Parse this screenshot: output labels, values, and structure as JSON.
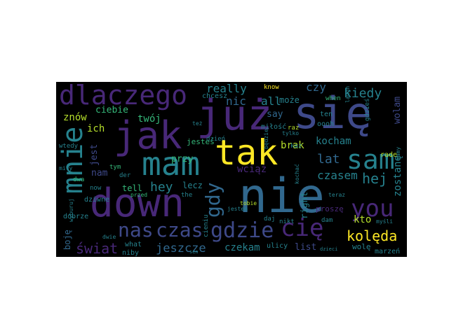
{
  "wordcloud": {
    "background": "#000000",
    "palette": [
      "#440154",
      "#482878",
      "#3e4989",
      "#31688e",
      "#26828e",
      "#1f9e89",
      "#35b779",
      "#6ece58",
      "#b5de2b",
      "#fde725"
    ],
    "words": [
      {
        "text": "nie",
        "color": "#31688e"
      },
      {
        "text": "się",
        "color": "#3e4989"
      },
      {
        "text": "już",
        "color": "#482878"
      },
      {
        "text": "tak",
        "color": "#fde725"
      },
      {
        "text": "jak",
        "color": "#482878"
      },
      {
        "text": "down",
        "color": "#482878"
      },
      {
        "text": "mam",
        "color": "#26828e"
      },
      {
        "text": "dlaczego",
        "color": "#482878"
      },
      {
        "text": "mnie",
        "color": "#26828e"
      },
      {
        "text": "sam",
        "color": "#26828e"
      },
      {
        "text": "gdzie",
        "color": "#3e4989"
      },
      {
        "text": "cię",
        "color": "#482878"
      },
      {
        "text": "czas",
        "color": "#3e4989"
      },
      {
        "text": "nas",
        "color": "#3e4989"
      },
      {
        "text": "you",
        "color": "#482878"
      },
      {
        "text": "gdy",
        "color": "#31688e"
      },
      {
        "text": "kolęda",
        "color": "#fde725"
      },
      {
        "text": "świat",
        "color": "#482878"
      },
      {
        "text": "jeszcze",
        "color": "#31688e"
      },
      {
        "text": "really",
        "color": "#26828e"
      },
      {
        "text": "kiedy",
        "color": "#26828e"
      },
      {
        "text": "hej",
        "color": "#26828e"
      },
      {
        "text": "lat",
        "color": "#31688e"
      },
      {
        "text": "hey",
        "color": "#26828e"
      },
      {
        "text": "czasem",
        "color": "#26828e"
      },
      {
        "text": "kocham",
        "color": "#26828e"
      },
      {
        "text": "nic",
        "color": "#31688e"
      },
      {
        "text": "all",
        "color": "#26828e"
      },
      {
        "text": "twój",
        "color": "#35b779"
      },
      {
        "text": "znów",
        "color": "#b5de2b"
      },
      {
        "text": "ciebie",
        "color": "#35b779"
      },
      {
        "text": "ich",
        "color": "#b5de2b"
      },
      {
        "text": "jest",
        "color": "#3e4989"
      },
      {
        "text": "przy",
        "color": "#35b779"
      },
      {
        "text": "brak",
        "color": "#b5de2b"
      },
      {
        "text": "czy",
        "color": "#31688e"
      },
      {
        "text": "wolam",
        "color": "#3e4989"
      },
      {
        "text": "zostanę",
        "color": "#26828e"
      },
      {
        "text": "nam",
        "color": "#3e4989"
      },
      {
        "text": "wciąż",
        "color": "#482878"
      },
      {
        "text": "kto",
        "color": "#b5de2b"
      },
      {
        "text": "right",
        "color": "#26828e"
      },
      {
        "text": "czekam",
        "color": "#26828e"
      },
      {
        "text": "list",
        "color": "#3e4989"
      },
      {
        "text": "boję",
        "color": "#31688e"
      },
      {
        "text": "tell",
        "color": "#35b779"
      },
      {
        "text": "lecz",
        "color": "#26828e"
      },
      {
        "text": "say",
        "color": "#31688e"
      },
      {
        "text": "może",
        "color": "#26828e"
      },
      {
        "text": "jesteś",
        "color": "#35b779"
      },
      {
        "text": "dzień",
        "color": "#26828e"
      },
      {
        "text": "dziwne",
        "color": "#26828e"
      },
      {
        "text": "dobrze",
        "color": "#26828e"
      },
      {
        "text": "what",
        "color": "#26828e"
      },
      {
        "text": "niby",
        "color": "#26828e"
      },
      {
        "text": "ulicy",
        "color": "#26828e"
      },
      {
        "text": "wolę",
        "color": "#26828e"
      },
      {
        "text": "marzeń",
        "color": "#26828e"
      },
      {
        "text": "proszę",
        "color": "#482878"
      },
      {
        "text": "rade",
        "color": "#b5de2b"
      },
      {
        "text": "the",
        "color": "#26828e"
      },
      {
        "text": "der",
        "color": "#26828e"
      },
      {
        "text": "tym",
        "color": "#35b779"
      },
      {
        "text": "now",
        "color": "#26828e"
      },
      {
        "text": "dwa",
        "color": "#35b779"
      },
      {
        "text": "wtedy",
        "color": "#26828e"
      },
      {
        "text": "mity",
        "color": "#26828e"
      },
      {
        "text": "miłość",
        "color": "#26828e"
      },
      {
        "text": "know",
        "color": "#fde725"
      },
      {
        "text": "chcesz",
        "color": "#26828e"
      },
      {
        "text": "ten",
        "color": "#26828e"
      },
      {
        "text": "oooh",
        "color": "#26828e"
      },
      {
        "text": "raz",
        "color": "#b5de2b"
      },
      {
        "text": "kaz",
        "color": "#26828e"
      },
      {
        "text": "tobie",
        "color": "#b5de2b"
      },
      {
        "text": "daj",
        "color": "#26828e"
      },
      {
        "text": "dam",
        "color": "#26828e"
      },
      {
        "text": "nikt",
        "color": "#26828e"
      },
      {
        "text": "when",
        "color": "#35b779"
      },
      {
        "text": "laugh",
        "color": "#26828e"
      },
      {
        "text": "gdzieś",
        "color": "#26828e"
      },
      {
        "text": "cieniu",
        "color": "#26828e"
      },
      {
        "text": "teraz",
        "color": "#26828e"
      },
      {
        "text": "myśli",
        "color": "#26828e"
      },
      {
        "text": "mamy",
        "color": "#26828e"
      },
      {
        "text": "dwie",
        "color": "#26828e"
      },
      {
        "text": "też",
        "color": "#26828e"
      },
      {
        "text": "przed",
        "color": "#35b779"
      },
      {
        "text": "będzie",
        "color": "#26828e"
      },
      {
        "text": "kochać",
        "color": "#26828e"
      },
      {
        "text": "jestem",
        "color": "#26828e"
      },
      {
        "text": "tylko",
        "color": "#26828e"
      },
      {
        "text": "dzieci",
        "color": "#26828e"
      },
      {
        "text": "sen",
        "color": "#26828e"
      },
      {
        "text": "wyburuj",
        "color": "#26828e"
      }
    ]
  }
}
